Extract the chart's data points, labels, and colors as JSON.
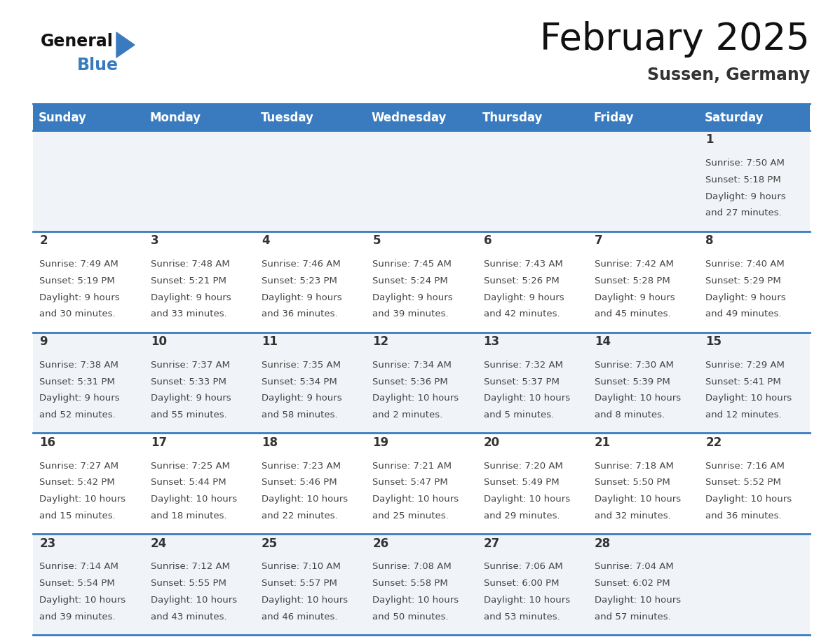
{
  "title": "February 2025",
  "subtitle": "Sussen, Germany",
  "header_bg": "#3a7bbf",
  "header_text": "#ffffff",
  "day_names": [
    "Sunday",
    "Monday",
    "Tuesday",
    "Wednesday",
    "Thursday",
    "Friday",
    "Saturday"
  ],
  "row_bgs": [
    "#f0f4f8",
    "#ffffff",
    "#f0f4f8",
    "#ffffff",
    "#f0f4f8"
  ],
  "cell_border": "#3a7bbf",
  "date_color": "#333333",
  "info_color": "#444444",
  "title_color": "#111111",
  "subtitle_color": "#333333",
  "logo_general_color": "#111111",
  "logo_blue_color": "#3a7bbf",
  "days": [
    {
      "day": 1,
      "col": 6,
      "row": 0,
      "sunrise": "7:50 AM",
      "sunset": "5:18 PM",
      "daylight_h": "9 hours",
      "daylight_m": "and 27 minutes."
    },
    {
      "day": 2,
      "col": 0,
      "row": 1,
      "sunrise": "7:49 AM",
      "sunset": "5:19 PM",
      "daylight_h": "9 hours",
      "daylight_m": "and 30 minutes."
    },
    {
      "day": 3,
      "col": 1,
      "row": 1,
      "sunrise": "7:48 AM",
      "sunset": "5:21 PM",
      "daylight_h": "9 hours",
      "daylight_m": "and 33 minutes."
    },
    {
      "day": 4,
      "col": 2,
      "row": 1,
      "sunrise": "7:46 AM",
      "sunset": "5:23 PM",
      "daylight_h": "9 hours",
      "daylight_m": "and 36 minutes."
    },
    {
      "day": 5,
      "col": 3,
      "row": 1,
      "sunrise": "7:45 AM",
      "sunset": "5:24 PM",
      "daylight_h": "9 hours",
      "daylight_m": "and 39 minutes."
    },
    {
      "day": 6,
      "col": 4,
      "row": 1,
      "sunrise": "7:43 AM",
      "sunset": "5:26 PM",
      "daylight_h": "9 hours",
      "daylight_m": "and 42 minutes."
    },
    {
      "day": 7,
      "col": 5,
      "row": 1,
      "sunrise": "7:42 AM",
      "sunset": "5:28 PM",
      "daylight_h": "9 hours",
      "daylight_m": "and 45 minutes."
    },
    {
      "day": 8,
      "col": 6,
      "row": 1,
      "sunrise": "7:40 AM",
      "sunset": "5:29 PM",
      "daylight_h": "9 hours",
      "daylight_m": "and 49 minutes."
    },
    {
      "day": 9,
      "col": 0,
      "row": 2,
      "sunrise": "7:38 AM",
      "sunset": "5:31 PM",
      "daylight_h": "9 hours",
      "daylight_m": "and 52 minutes."
    },
    {
      "day": 10,
      "col": 1,
      "row": 2,
      "sunrise": "7:37 AM",
      "sunset": "5:33 PM",
      "daylight_h": "9 hours",
      "daylight_m": "and 55 minutes."
    },
    {
      "day": 11,
      "col": 2,
      "row": 2,
      "sunrise": "7:35 AM",
      "sunset": "5:34 PM",
      "daylight_h": "9 hours",
      "daylight_m": "and 58 minutes."
    },
    {
      "day": 12,
      "col": 3,
      "row": 2,
      "sunrise": "7:34 AM",
      "sunset": "5:36 PM",
      "daylight_h": "10 hours",
      "daylight_m": "and 2 minutes."
    },
    {
      "day": 13,
      "col": 4,
      "row": 2,
      "sunrise": "7:32 AM",
      "sunset": "5:37 PM",
      "daylight_h": "10 hours",
      "daylight_m": "and 5 minutes."
    },
    {
      "day": 14,
      "col": 5,
      "row": 2,
      "sunrise": "7:30 AM",
      "sunset": "5:39 PM",
      "daylight_h": "10 hours",
      "daylight_m": "and 8 minutes."
    },
    {
      "day": 15,
      "col": 6,
      "row": 2,
      "sunrise": "7:29 AM",
      "sunset": "5:41 PM",
      "daylight_h": "10 hours",
      "daylight_m": "and 12 minutes."
    },
    {
      "day": 16,
      "col": 0,
      "row": 3,
      "sunrise": "7:27 AM",
      "sunset": "5:42 PM",
      "daylight_h": "10 hours",
      "daylight_m": "and 15 minutes."
    },
    {
      "day": 17,
      "col": 1,
      "row": 3,
      "sunrise": "7:25 AM",
      "sunset": "5:44 PM",
      "daylight_h": "10 hours",
      "daylight_m": "and 18 minutes."
    },
    {
      "day": 18,
      "col": 2,
      "row": 3,
      "sunrise": "7:23 AM",
      "sunset": "5:46 PM",
      "daylight_h": "10 hours",
      "daylight_m": "and 22 minutes."
    },
    {
      "day": 19,
      "col": 3,
      "row": 3,
      "sunrise": "7:21 AM",
      "sunset": "5:47 PM",
      "daylight_h": "10 hours",
      "daylight_m": "and 25 minutes."
    },
    {
      "day": 20,
      "col": 4,
      "row": 3,
      "sunrise": "7:20 AM",
      "sunset": "5:49 PM",
      "daylight_h": "10 hours",
      "daylight_m": "and 29 minutes."
    },
    {
      "day": 21,
      "col": 5,
      "row": 3,
      "sunrise": "7:18 AM",
      "sunset": "5:50 PM",
      "daylight_h": "10 hours",
      "daylight_m": "and 32 minutes."
    },
    {
      "day": 22,
      "col": 6,
      "row": 3,
      "sunrise": "7:16 AM",
      "sunset": "5:52 PM",
      "daylight_h": "10 hours",
      "daylight_m": "and 36 minutes."
    },
    {
      "day": 23,
      "col": 0,
      "row": 4,
      "sunrise": "7:14 AM",
      "sunset": "5:54 PM",
      "daylight_h": "10 hours",
      "daylight_m": "and 39 minutes."
    },
    {
      "day": 24,
      "col": 1,
      "row": 4,
      "sunrise": "7:12 AM",
      "sunset": "5:55 PM",
      "daylight_h": "10 hours",
      "daylight_m": "and 43 minutes."
    },
    {
      "day": 25,
      "col": 2,
      "row": 4,
      "sunrise": "7:10 AM",
      "sunset": "5:57 PM",
      "daylight_h": "10 hours",
      "daylight_m": "and 46 minutes."
    },
    {
      "day": 26,
      "col": 3,
      "row": 4,
      "sunrise": "7:08 AM",
      "sunset": "5:58 PM",
      "daylight_h": "10 hours",
      "daylight_m": "and 50 minutes."
    },
    {
      "day": 27,
      "col": 4,
      "row": 4,
      "sunrise": "7:06 AM",
      "sunset": "6:00 PM",
      "daylight_h": "10 hours",
      "daylight_m": "and 53 minutes."
    },
    {
      "day": 28,
      "col": 5,
      "row": 4,
      "sunrise": "7:04 AM",
      "sunset": "6:02 PM",
      "daylight_h": "10 hours",
      "daylight_m": "and 57 minutes."
    }
  ]
}
